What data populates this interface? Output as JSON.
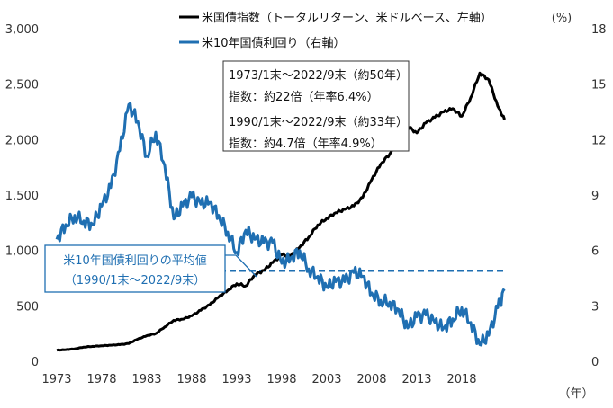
{
  "chart_data": {
    "type": "line",
    "title": "",
    "x": [
      1973,
      1974,
      1975,
      1976,
      1977,
      1978,
      1979,
      1980,
      1981,
      1982,
      1983,
      1984,
      1985,
      1986,
      1987,
      1988,
      1989,
      1990,
      1991,
      1992,
      1993,
      1994,
      1995,
      1996,
      1997,
      1998,
      1999,
      2000,
      2001,
      2002,
      2003,
      2004,
      2005,
      2006,
      2007,
      2008,
      2009,
      2010,
      2011,
      2012,
      2013,
      2014,
      2015,
      2016,
      2017,
      2018,
      2019,
      2020,
      2021,
      2022,
      2022.75
    ],
    "xticks": [
      1973,
      1978,
      1983,
      1988,
      1993,
      1998,
      2003,
      2008,
      2013,
      2018
    ],
    "x_unit_label": "（年）",
    "xlim": [
      1973,
      2031
    ],
    "left_axis": {
      "ylim": [
        0,
        3000
      ],
      "ticks": [
        "0",
        "500",
        "1,000",
        "1,500",
        "2,000",
        "2,500",
        "3,000"
      ]
    },
    "right_axis": {
      "ylim": [
        0,
        18
      ],
      "ticks": [
        "0",
        "3",
        "6",
        "9",
        "12",
        "15",
        "18"
      ],
      "unit_label": "(%)"
    },
    "series": [
      {
        "name": "米国債指数（トータルリターン、米ドルベース、左軸）",
        "axis": "left",
        "color": "#000000",
        "values": [
          100,
          105,
          112,
          128,
          135,
          140,
          145,
          150,
          160,
          200,
          230,
          250,
          310,
          370,
          380,
          410,
          460,
          510,
          580,
          640,
          700,
          680,
          780,
          820,
          890,
          960,
          950,
          1030,
          1120,
          1230,
          1290,
          1340,
          1370,
          1400,
          1480,
          1640,
          1780,
          1870,
          2050,
          2120,
          2060,
          2150,
          2200,
          2250,
          2280,
          2210,
          2380,
          2600,
          2540,
          2300,
          2180
        ]
      },
      {
        "name": "米10年国債利回り（右軸）",
        "axis": "right",
        "color": "#1f6fb2",
        "values": [
          6.6,
          7.4,
          7.9,
          7.6,
          7.4,
          8.4,
          9.4,
          11.4,
          13.9,
          13.0,
          11.1,
          12.4,
          10.6,
          7.7,
          8.4,
          8.9,
          8.5,
          8.6,
          7.9,
          7.0,
          5.9,
          7.1,
          6.6,
          6.4,
          6.4,
          5.3,
          5.6,
          6.0,
          5.0,
          4.6,
          4.0,
          4.3,
          4.3,
          4.8,
          4.6,
          3.7,
          3.3,
          3.2,
          2.8,
          1.8,
          2.4,
          2.5,
          2.1,
          1.8,
          2.3,
          2.9,
          2.1,
          0.9,
          1.4,
          2.9,
          3.8
        ]
      }
    ],
    "reference_line": {
      "label": "米10年国債利回りの平均値",
      "sublabel": "（1990/1末～2022/9末）",
      "value": 4.9,
      "axis": "right",
      "x_range": [
        1990,
        2022.75
      ]
    },
    "annotation": {
      "line1": "1973/1末～2022/9末（約50年）",
      "line2": "指数：約22倍（年率6.4%）",
      "line3": "1990/1末～2022/9末（約33年）",
      "line4": "指数：約4.7倍（年率4.9%）"
    },
    "legend": [
      "米国債指数（トータルリターン、米ドルベース、左軸）",
      "米10年国債利回り（右軸）"
    ],
    "legend_position": "top"
  }
}
